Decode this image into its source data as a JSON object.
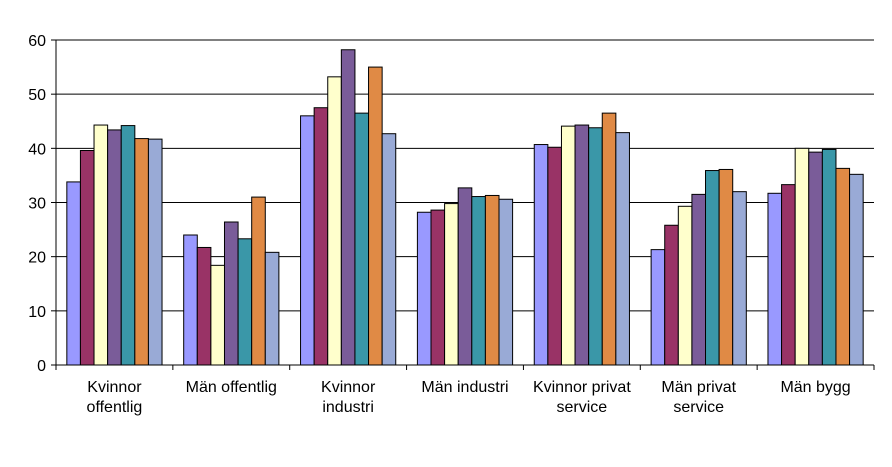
{
  "chart_data": {
    "type": "bar",
    "title": "",
    "xlabel": "",
    "ylabel": "",
    "ylim": [
      0,
      60
    ],
    "yticks": [
      "0",
      "10",
      "20",
      "30",
      "40",
      "50",
      "60"
    ],
    "grid": true,
    "legend": "none",
    "categories": [
      [
        "Kvinnor",
        "offentlig"
      ],
      [
        "Män offentlig"
      ],
      [
        "Kvinnor",
        "industri"
      ],
      [
        "Män industri"
      ],
      [
        "Kvinnor privat",
        "service"
      ],
      [
        "Män privat",
        "service"
      ],
      [
        "Män bygg"
      ]
    ],
    "series_colors": [
      "#9999ff",
      "#993366",
      "#ffffcc",
      "#7a5c99",
      "#3a97a8",
      "#e08a45",
      "#99aad6"
    ],
    "series": [
      {
        "values": [
          33.8,
          24.0,
          46.0,
          28.2,
          40.7,
          21.3,
          31.7
        ]
      },
      {
        "values": [
          39.6,
          21.7,
          47.5,
          28.6,
          40.2,
          25.8,
          33.3
        ]
      },
      {
        "values": [
          44.3,
          18.4,
          53.2,
          29.8,
          44.1,
          29.3,
          40.0
        ]
      },
      {
        "values": [
          43.4,
          26.4,
          58.2,
          32.7,
          44.3,
          31.5,
          39.3
        ]
      },
      {
        "values": [
          44.2,
          23.3,
          46.5,
          31.1,
          43.8,
          35.9,
          39.8
        ]
      },
      {
        "values": [
          41.8,
          31.0,
          55.0,
          31.3,
          46.5,
          36.1,
          36.3
        ]
      },
      {
        "values": [
          41.7,
          20.8,
          42.7,
          30.6,
          42.9,
          32.0,
          35.2
        ]
      }
    ]
  }
}
